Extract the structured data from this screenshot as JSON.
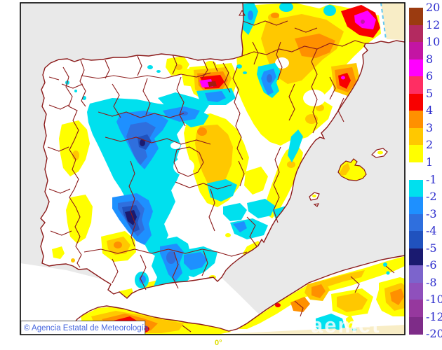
{
  "map": {
    "attribution": "© Agencia Estatal de Meteorología",
    "watermark": "aemet",
    "longitude_label": "0°"
  },
  "colorbar": {
    "tick_values": [
      20,
      12,
      10,
      8,
      6,
      5,
      4,
      3,
      2,
      1,
      -1,
      -2,
      -3,
      -4,
      -5,
      -6,
      -8,
      -10,
      -12,
      -20
    ],
    "positive_labels": [
      "20",
      "12",
      "10",
      "8",
      "6",
      "5",
      "4",
      "3",
      "2",
      "1"
    ],
    "negative_labels": [
      "-1",
      "-2",
      "-3",
      "-4",
      "-5",
      "-6",
      "-8",
      "-10",
      "-12",
      "-20"
    ],
    "positive_colors": [
      "#9B3B10",
      "#B32A60",
      "#C315A3",
      "#FF00FF",
      "#FF2E63",
      "#F80000",
      "#FF9000",
      "#FFC800",
      "#FFFF00"
    ],
    "negative_colors": [
      "#00E0EE",
      "#1E90FF",
      "#2F6FDE",
      "#2052BE",
      "#1A1A70",
      "#7C64CC",
      "#8F50BC",
      "#96389E",
      "#7E2C88"
    ],
    "label_color": "#2A2ACC"
  },
  "palette": {
    "sea": "#E9E9E9",
    "land": "#FFFFFF",
    "coast_border": "#8B1A1A",
    "outside_domain": "#F8EDC6",
    "frame": "#000000",
    "domain_edge_dash": "#63C8F0"
  }
}
